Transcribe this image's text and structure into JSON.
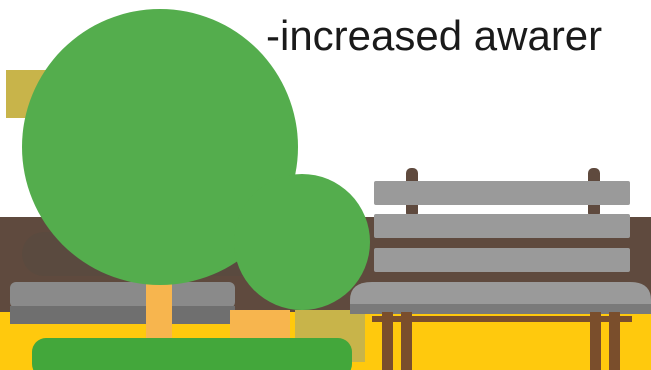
{
  "slide": {
    "caption": "-increased awarer"
  },
  "illustration": {
    "colors": {
      "sky": "#ffffff",
      "tree_foliage": "#54ad4d",
      "tree_trunk": "#f7b54e",
      "grass": "#43a73b",
      "fence_brown": "#5f4a3e",
      "ground_yellow": "#ffc90d",
      "bench_slat_gray": "#9a9a9a",
      "bench_leg_brown": "#7a4e2c",
      "sign_mustard": "#c8b44a"
    }
  }
}
